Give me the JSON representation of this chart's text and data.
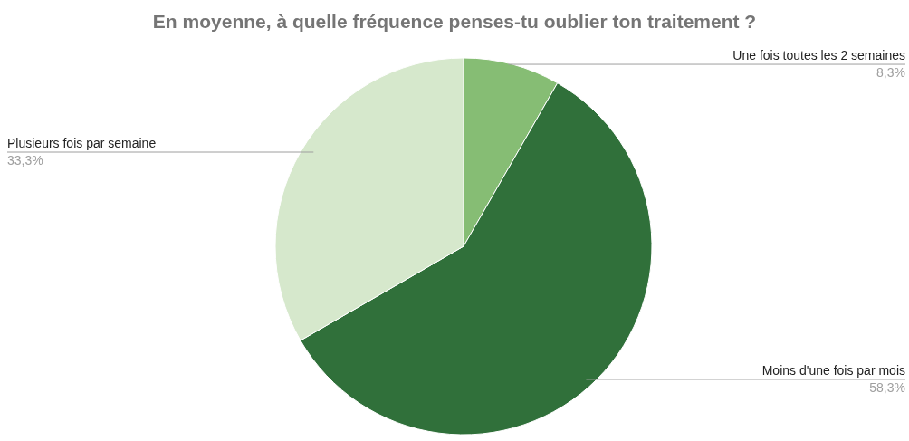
{
  "chart_data": {
    "type": "pie",
    "title": "En moyenne, à quelle fréquence penses-tu oublier ton traitement ?",
    "categories": [
      "Une fois toutes les 2 semaines",
      "Moins d'une fois par mois",
      "Plusieurs fois par semaine"
    ],
    "values": [
      8.3,
      58.3,
      33.3
    ],
    "value_labels": [
      "8,3%",
      "58,3%",
      "33,3%"
    ],
    "colors": [
      "#86bd74",
      "#30703a",
      "#d6e8cc"
    ]
  }
}
